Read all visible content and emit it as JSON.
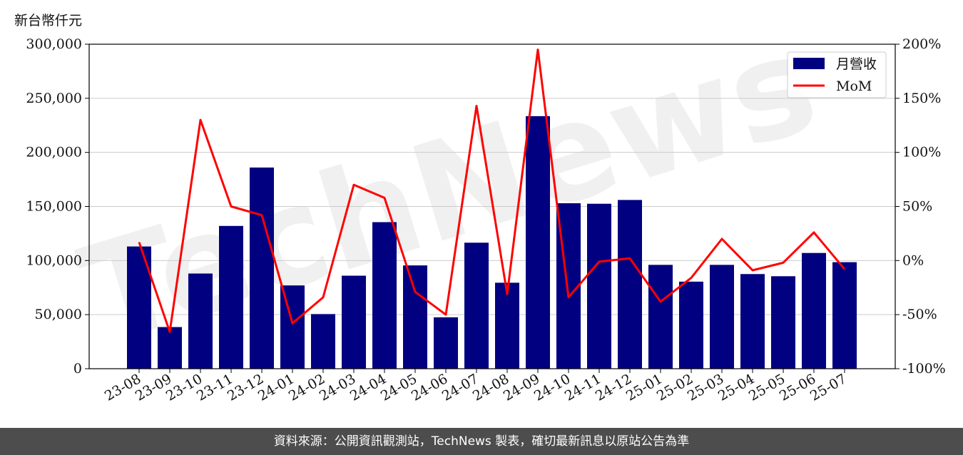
{
  "y_left_unit": "新台幣仟元",
  "footer_text": "資料來源：公開資訊觀測站，TechNews 製表，確切最新訊息以原站公告為準",
  "watermark": "TechNews",
  "chart_data": {
    "type": "bar",
    "categories": [
      "23-08",
      "23-09",
      "23-10",
      "23-11",
      "23-12",
      "24-01",
      "24-02",
      "24-03",
      "24-04",
      "24-05",
      "24-06",
      "24-07",
      "24-08",
      "24-09",
      "24-10",
      "24-11",
      "24-12",
      "25-01",
      "25-02",
      "25-03",
      "25-04",
      "25-05",
      "25-06",
      "25-07"
    ],
    "series": [
      {
        "name": "月營收",
        "type": "bar",
        "axis": "left",
        "color": "#000080",
        "values": [
          113000,
          38500,
          88000,
          132000,
          186000,
          77000,
          50500,
          86000,
          135500,
          95500,
          47500,
          116500,
          79500,
          233500,
          153000,
          152500,
          156000,
          96000,
          80500,
          96000,
          87500,
          85500,
          107000,
          98500
        ]
      },
      {
        "name": "MoM",
        "type": "line",
        "axis": "right",
        "color": "#ff0000",
        "values": [
          17,
          -66,
          130,
          50,
          42,
          -58,
          -34,
          70,
          58,
          -29,
          -50,
          143,
          -31,
          195,
          -34,
          -1,
          2,
          -38,
          -16,
          20,
          -9,
          -2,
          26,
          -8
        ]
      }
    ],
    "y_left": {
      "min": 0,
      "max": 300000,
      "ticks": [
        "0",
        "50,000",
        "100,000",
        "150,000",
        "200,000",
        "250,000",
        "300,000"
      ]
    },
    "y_right": {
      "min": -100,
      "max": 200,
      "ticks": [
        "-100%",
        "-50%",
        "0%",
        "50%",
        "100%",
        "150%",
        "200%"
      ]
    },
    "grid": true,
    "legend_position": "top-right",
    "ylabel": "新台幣仟元"
  }
}
